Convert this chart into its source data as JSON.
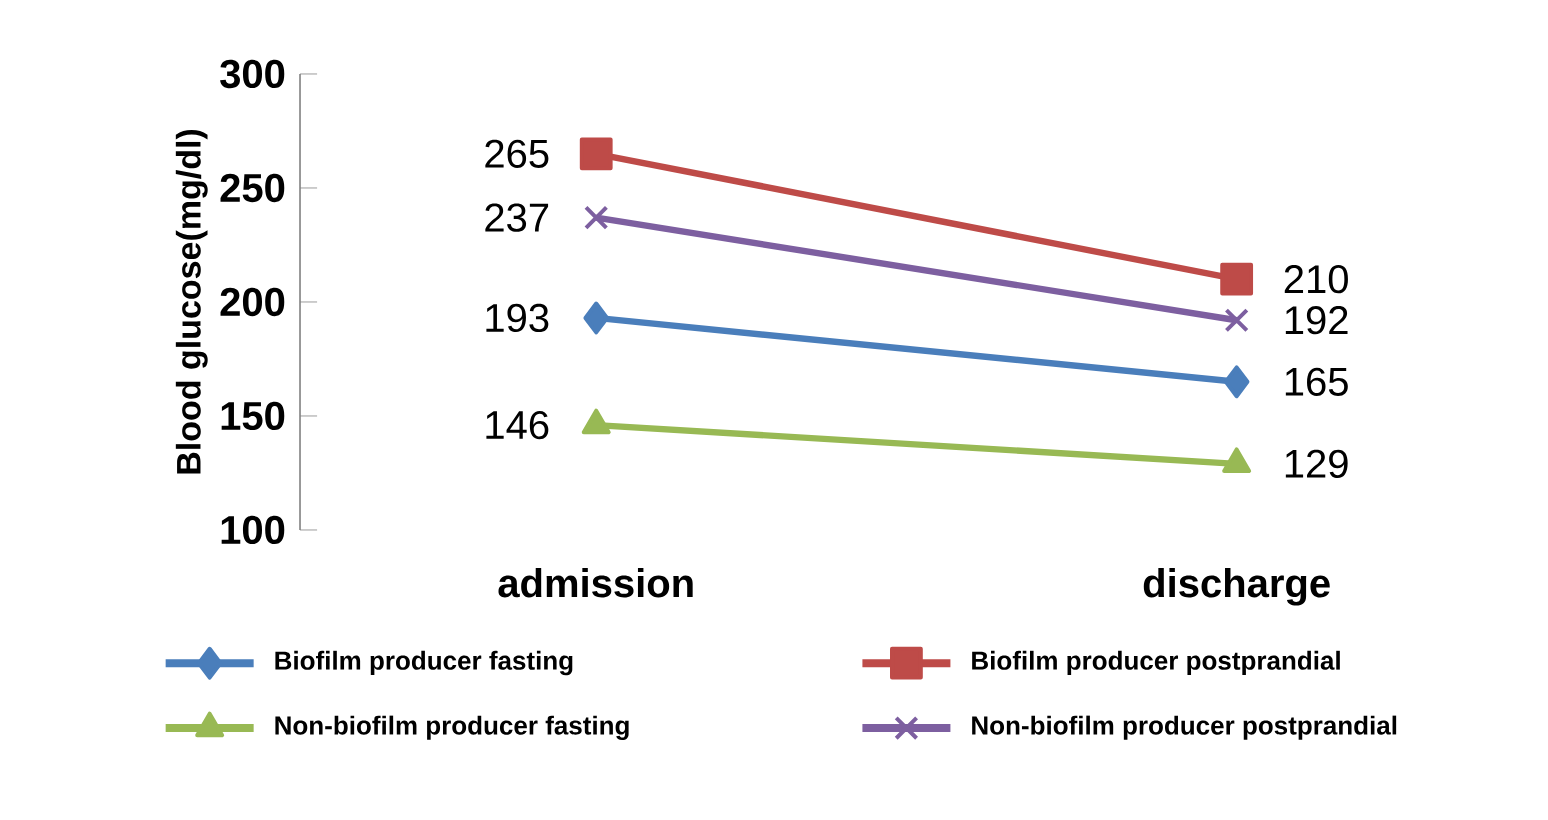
{
  "chart_data": {
    "type": "line",
    "ylabel": "Blood glucose(mg/dl)",
    "categories": [
      "admission",
      "discharge"
    ],
    "series": [
      {
        "name": "Biofilm producer fasting",
        "color": "#4a7ebb",
        "marker": "diamond",
        "values": [
          193,
          165
        ]
      },
      {
        "name": "Biofilm producer postprandial",
        "color": "#be4b48",
        "marker": "square",
        "values": [
          265,
          210
        ]
      },
      {
        "name": "Non-biofilm producer fasting",
        "color": "#98b954",
        "marker": "triangle",
        "values": [
          146,
          129
        ]
      },
      {
        "name": "Non-biofilm producer postprandial",
        "color": "#7d5fa0",
        "marker": "cross",
        "values": [
          237,
          192
        ]
      }
    ],
    "ylim": [
      100,
      300
    ],
    "yticks": [
      100,
      150,
      200,
      250,
      300
    ],
    "data_labels": true,
    "legend": "bottom",
    "grid": false
  }
}
